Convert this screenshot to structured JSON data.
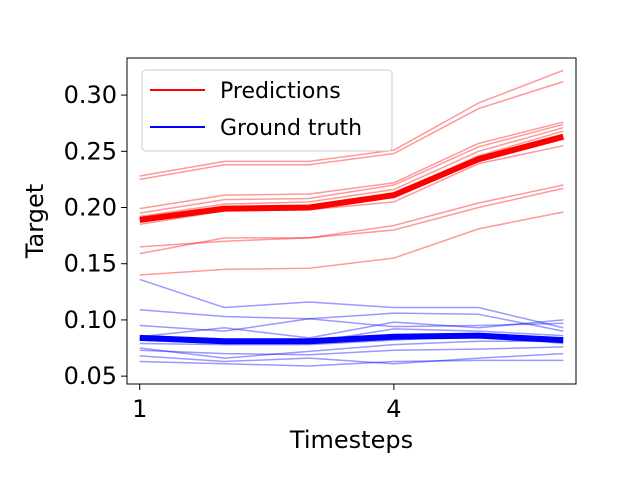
{
  "chart_data": {
    "type": "line",
    "xlabel": "Timesteps",
    "ylabel": "Target",
    "x": [
      1,
      2,
      3,
      4,
      5,
      6
    ],
    "xticks": [
      1,
      4
    ],
    "xtick_labels": [
      "1",
      "4"
    ],
    "xlim": [
      0.85,
      6.15
    ],
    "yticks": [
      0.05,
      0.1,
      0.15,
      0.2,
      0.25,
      0.3
    ],
    "ytick_labels": [
      "0.05",
      "0.10",
      "0.15",
      "0.20",
      "0.25",
      "0.30"
    ],
    "ylim": [
      0.043,
      0.333
    ],
    "grid": false,
    "legend_position": "top-left",
    "legend": [
      {
        "label": "Predictions",
        "color": "#ff0000"
      },
      {
        "label": "Ground truth",
        "color": "#0000ff"
      }
    ],
    "colors": {
      "predictions": "#ff0000",
      "ground_truth": "#0000ff"
    },
    "prediction_samples": [
      [
        0.228,
        0.241,
        0.241,
        0.251,
        0.293,
        0.322
      ],
      [
        0.225,
        0.238,
        0.238,
        0.248,
        0.288,
        0.312
      ],
      [
        0.199,
        0.211,
        0.212,
        0.222,
        0.257,
        0.276
      ],
      [
        0.195,
        0.207,
        0.208,
        0.22,
        0.254,
        0.274
      ],
      [
        0.192,
        0.203,
        0.205,
        0.216,
        0.25,
        0.271
      ],
      [
        0.188,
        0.199,
        0.201,
        0.212,
        0.246,
        0.268
      ],
      [
        0.185,
        0.197,
        0.198,
        0.205,
        0.239,
        0.255
      ],
      [
        0.165,
        0.17,
        0.173,
        0.184,
        0.204,
        0.22
      ],
      [
        0.159,
        0.173,
        0.173,
        0.18,
        0.2,
        0.217
      ],
      [
        0.14,
        0.145,
        0.146,
        0.155,
        0.181,
        0.196
      ]
    ],
    "ground_truth_samples": [
      [
        0.136,
        0.111,
        0.116,
        0.111,
        0.111,
        0.093
      ],
      [
        0.109,
        0.103,
        0.101,
        0.106,
        0.105,
        0.09
      ],
      [
        0.095,
        0.09,
        0.101,
        0.094,
        0.095,
        0.097
      ],
      [
        0.085,
        0.093,
        0.084,
        0.098,
        0.093,
        0.1
      ],
      [
        0.082,
        0.079,
        0.08,
        0.092,
        0.09,
        0.086
      ],
      [
        0.079,
        0.078,
        0.078,
        0.082,
        0.086,
        0.079
      ],
      [
        0.075,
        0.066,
        0.072,
        0.078,
        0.081,
        0.081
      ],
      [
        0.073,
        0.07,
        0.069,
        0.073,
        0.074,
        0.076
      ],
      [
        0.068,
        0.063,
        0.066,
        0.061,
        0.066,
        0.07
      ],
      [
        0.063,
        0.061,
        0.059,
        0.063,
        0.064,
        0.064
      ]
    ],
    "prediction_mean": [
      0.189,
      0.199,
      0.2,
      0.211,
      0.243,
      0.263
    ],
    "ground_truth_mean": [
      0.084,
      0.081,
      0.081,
      0.085,
      0.086,
      0.082
    ]
  }
}
